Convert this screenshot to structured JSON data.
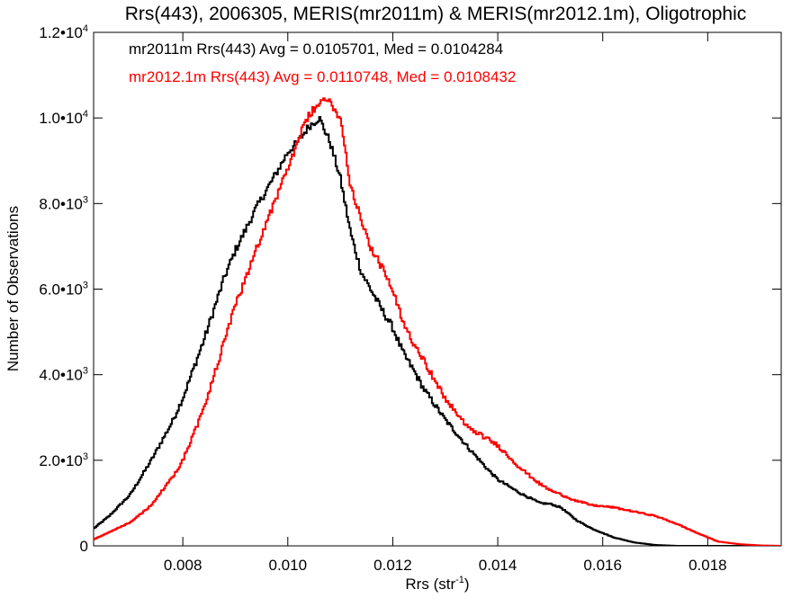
{
  "chart_data": {
    "type": "line",
    "title": "Rrs(443), 2006305, MERIS(mr2011m) & MERIS(mr2012.1m), Oligotrophic",
    "xlabel": "Rrs (str",
    "xlabel_sup": "-1",
    "xlabel_close": ")",
    "ylabel": "Number of Observations",
    "xlim": [
      0.0063,
      0.0194
    ],
    "ylim": [
      0,
      12000
    ],
    "xticks": [
      {
        "value": 0.008,
        "label": "0.008"
      },
      {
        "value": 0.01,
        "label": "0.010"
      },
      {
        "value": 0.012,
        "label": "0.012"
      },
      {
        "value": 0.014,
        "label": "0.014"
      },
      {
        "value": 0.016,
        "label": "0.016"
      },
      {
        "value": 0.018,
        "label": "0.018"
      }
    ],
    "yticks": [
      {
        "value": 0,
        "base": "0",
        "sup": ""
      },
      {
        "value": 2000,
        "base": "2.0•10",
        "sup": "3"
      },
      {
        "value": 4000,
        "base": "4.0•10",
        "sup": "3"
      },
      {
        "value": 6000,
        "base": "6.0•10",
        "sup": "3"
      },
      {
        "value": 8000,
        "base": "8.0•10",
        "sup": "3"
      },
      {
        "value": 10000,
        "base": "1.0•10",
        "sup": "4"
      },
      {
        "value": 12000,
        "base": "1.2•10",
        "sup": "4"
      }
    ],
    "x": [
      0.0063,
      0.0066,
      0.007,
      0.0074,
      0.0078,
      0.008,
      0.0084,
      0.0088,
      0.009,
      0.0094,
      0.0098,
      0.01,
      0.0102,
      0.0104,
      0.0106,
      0.0108,
      0.011,
      0.0112,
      0.0114,
      0.0116,
      0.0118,
      0.012,
      0.0122,
      0.0124,
      0.0126,
      0.0128,
      0.013,
      0.0134,
      0.0138,
      0.014,
      0.0144,
      0.0148,
      0.015,
      0.0152,
      0.0155,
      0.0158,
      0.0162,
      0.0166,
      0.017,
      0.0174,
      0.0178,
      0.0182,
      0.0186,
      0.019,
      0.0194
    ],
    "series": [
      {
        "name": "mr2011m",
        "color": "#000000",
        "values": [
          400,
          700,
          1200,
          2000,
          2900,
          3450,
          4800,
          6300,
          6900,
          7900,
          8750,
          9200,
          9450,
          9800,
          10000,
          9450,
          8600,
          7300,
          6400,
          5950,
          5500,
          5100,
          4500,
          4100,
          3650,
          3300,
          2950,
          2350,
          1800,
          1550,
          1250,
          1000,
          980,
          900,
          600,
          400,
          200,
          80,
          20,
          0,
          0,
          0,
          0,
          0,
          0
        ]
      },
      {
        "name": "mr2012.1m",
        "color": "#ff0000",
        "values": [
          150,
          320,
          550,
          950,
          1600,
          2000,
          3200,
          4800,
          5600,
          6950,
          8200,
          8800,
          9500,
          10050,
          10350,
          10400,
          10000,
          8400,
          7650,
          6900,
          6500,
          5950,
          5200,
          4750,
          4350,
          3850,
          3450,
          2800,
          2500,
          2350,
          1850,
          1450,
          1300,
          1200,
          1050,
          950,
          900,
          800,
          700,
          520,
          300,
          100,
          40,
          10,
          0
        ]
      }
    ],
    "legend": {
      "placement": "top-left",
      "entries": [
        {
          "text": "mr2011m Rrs(443) Avg = 0.0105701, Med = 0.0104284",
          "color": "#000000"
        },
        {
          "text": "mr2012.1m Rrs(443) Avg = 0.0110748, Med = 0.0108432",
          "color": "#ff0000"
        }
      ]
    },
    "grid": false
  }
}
